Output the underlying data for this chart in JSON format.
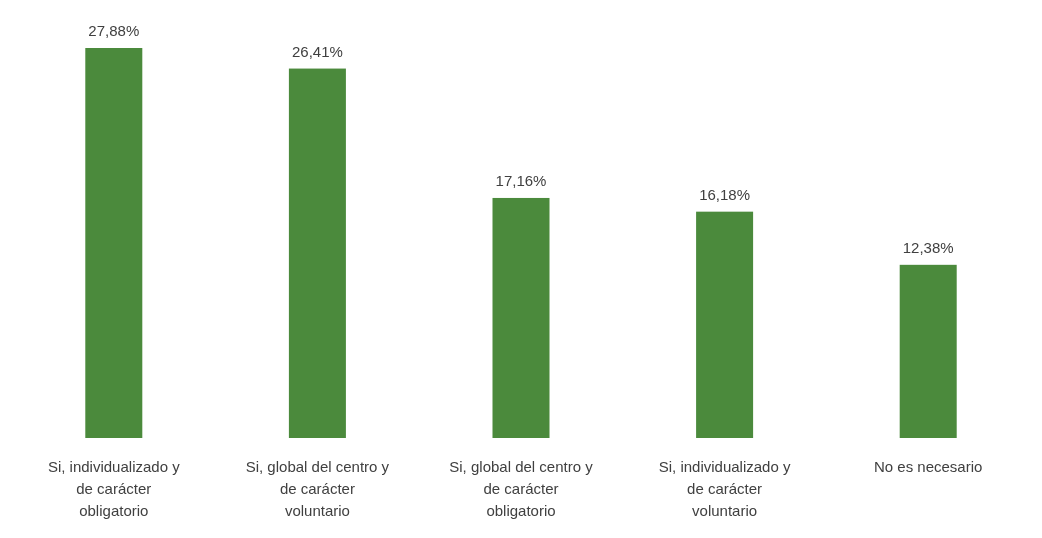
{
  "chart_data": {
    "type": "bar",
    "categories": [
      "Si, individualizado y\nde carácter\nobligatorio",
      "Si, global del centro y\nde carácter\nvoluntario",
      "Si, global del centro y\nde carácter\nobligatorio",
      "Si, individualizado y\nde carácter\nvoluntario",
      "No es necesario"
    ],
    "values": [
      27.88,
      26.41,
      17.16,
      16.18,
      12.38
    ],
    "value_labels": [
      "27,88%",
      "26,41%",
      "17,16%",
      "16,18%",
      "12,38%"
    ],
    "color": "#4b8a3c"
  }
}
